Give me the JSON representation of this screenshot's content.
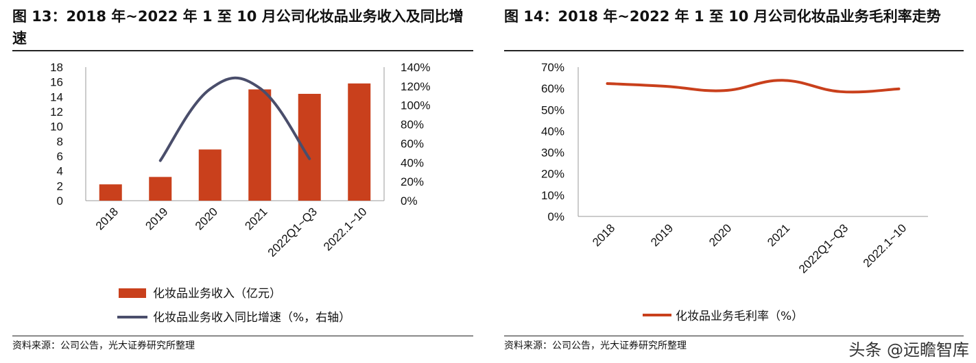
{
  "figures": {
    "left": {
      "title": "图 13：2018 年~2022 年 1 至 10 月公司化妆品业务收入及同比增速",
      "source": "资料来源：公司公告，光大证券研究所整理"
    },
    "right": {
      "title": "图 14：2018 年~2022 年 1 至 10 月公司化妆品业务毛利率走势",
      "source": "资料来源：公司公告，光大证券研究所整理"
    }
  },
  "watermark": "头条 @远瞻智库",
  "colors": {
    "bar": "#C9401C",
    "growth_line": "#4A4E6B",
    "margin_line": "#C9401C"
  },
  "chart_data": [
    {
      "type": "bar",
      "categories": [
        "2018",
        "2019",
        "2020",
        "2021",
        "2022Q1~Q3",
        "2022.1~10"
      ],
      "series": [
        {
          "name": "化妆品业务收入（亿元）",
          "type": "bar",
          "axis": "left",
          "values": [
            2.2,
            3.2,
            6.9,
            15.0,
            14.4,
            15.8
          ]
        },
        {
          "name": "化妆品业务收入同比增速（%，右轴）",
          "type": "line",
          "axis": "right",
          "values": [
            null,
            42,
            117,
            118,
            44,
            null
          ]
        }
      ],
      "y_left": {
        "ylim": [
          0,
          18
        ],
        "ticks": [
          "18",
          "16",
          "14",
          "12",
          "10",
          "8",
          "6",
          "4",
          "2",
          "0"
        ]
      },
      "y_right": {
        "ylim": [
          0,
          140
        ],
        "ticks": [
          "140%",
          "120%",
          "100%",
          "80%",
          "60%",
          "40%",
          "20%",
          "0%"
        ]
      },
      "legend": "bottom",
      "grid": false
    },
    {
      "type": "line",
      "categories": [
        "2018",
        "2019",
        "2020",
        "2021",
        "2022Q1~Q3",
        "2022.1~10"
      ],
      "series": [
        {
          "name": "化妆品业务毛利率（%）",
          "values": [
            62.3,
            61.0,
            59.0,
            63.8,
            58.5,
            59.8
          ]
        }
      ],
      "y": {
        "ylim": [
          0,
          70
        ],
        "ticks": [
          "70%",
          "60%",
          "50%",
          "40%",
          "30%",
          "20%",
          "10%",
          "0%"
        ]
      },
      "legend": "bottom",
      "grid": false
    }
  ]
}
